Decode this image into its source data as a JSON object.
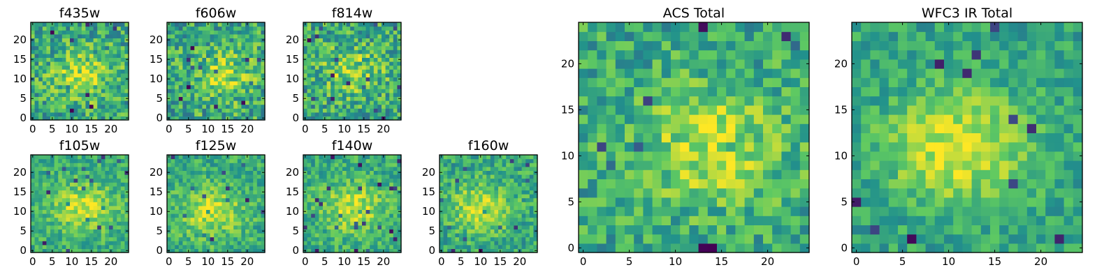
{
  "figure": {
    "colormap": "viridis",
    "colors": [
      "#440154",
      "#3b528b",
      "#21918c",
      "#5ec962",
      "#fde725"
    ]
  },
  "chart_data": [
    {
      "type": "heatmap",
      "title": "f435w",
      "size": 25,
      "xticks": [
        "0",
        "5",
        "10",
        "15",
        "20"
      ],
      "yticks": [
        "0",
        "5",
        "10",
        "15",
        "20"
      ],
      "xlim": [
        0,
        25
      ],
      "ylim": [
        0,
        25
      ],
      "peak": {
        "x": 13,
        "y": 11
      },
      "background": 0.6,
      "amplitude": 0.28,
      "noise": 0.24,
      "seed": 11
    },
    {
      "type": "heatmap",
      "title": "f606w",
      "size": 25,
      "xticks": [
        "0",
        "5",
        "10",
        "15",
        "20"
      ],
      "yticks": [
        "0",
        "5",
        "10",
        "15",
        "20"
      ],
      "xlim": [
        0,
        25
      ],
      "ylim": [
        0,
        25
      ],
      "peak": {
        "x": 14,
        "y": 11
      },
      "background": 0.6,
      "amplitude": 0.25,
      "noise": 0.25,
      "seed": 23
    },
    {
      "type": "heatmap",
      "title": "f814w",
      "size": 25,
      "xticks": [
        "0",
        "5",
        "10",
        "15",
        "20"
      ],
      "yticks": [
        "0",
        "5",
        "10",
        "15",
        "20"
      ],
      "xlim": [
        0,
        25
      ],
      "ylim": [
        0,
        25
      ],
      "peak": {
        "x": 12,
        "y": 12
      },
      "background": 0.6,
      "amplitude": 0.22,
      "noise": 0.25,
      "seed": 37
    },
    {
      "type": "heatmap",
      "title": "f105w",
      "size": 25,
      "xticks": [
        "0",
        "5",
        "10",
        "15",
        "20"
      ],
      "yticks": [
        "0",
        "5",
        "10",
        "15",
        "20"
      ],
      "xlim": [
        0,
        25
      ],
      "ylim": [
        0,
        25
      ],
      "peak": {
        "x": 13,
        "y": 11
      },
      "background": 0.62,
      "amplitude": 0.3,
      "noise": 0.16,
      "seed": 41
    },
    {
      "type": "heatmap",
      "title": "f125w",
      "size": 25,
      "xticks": [
        "0",
        "5",
        "10",
        "15",
        "20"
      ],
      "yticks": [
        "0",
        "5",
        "10",
        "15",
        "20"
      ],
      "xlim": [
        0,
        25
      ],
      "ylim": [
        0,
        25
      ],
      "peak": {
        "x": 11,
        "y": 10
      },
      "background": 0.62,
      "amplitude": 0.3,
      "noise": 0.17,
      "seed": 53
    },
    {
      "type": "heatmap",
      "title": "f140w",
      "size": 25,
      "xticks": [
        "0",
        "5",
        "10",
        "15",
        "20"
      ],
      "yticks": [
        "0",
        "5",
        "10",
        "15",
        "20"
      ],
      "xlim": [
        0,
        25
      ],
      "ylim": [
        0,
        25
      ],
      "peak": {
        "x": 12,
        "y": 11
      },
      "background": 0.62,
      "amplitude": 0.3,
      "noise": 0.17,
      "seed": 67
    },
    {
      "type": "heatmap",
      "title": "f160w",
      "size": 25,
      "xticks": [
        "0",
        "5",
        "10",
        "15",
        "20"
      ],
      "yticks": [
        "0",
        "5",
        "10",
        "15",
        "20"
      ],
      "xlim": [
        0,
        25
      ],
      "ylim": [
        0,
        25
      ],
      "peak": {
        "x": 10,
        "y": 11
      },
      "background": 0.6,
      "amplitude": 0.32,
      "noise": 0.18,
      "seed": 79
    },
    {
      "type": "heatmap",
      "title": "ACS Total",
      "size": 25,
      "xticks": [
        "0",
        "5",
        "10",
        "15",
        "20"
      ],
      "yticks": [
        "0",
        "5",
        "10",
        "15",
        "20"
      ],
      "xlim": [
        0,
        25
      ],
      "ylim": [
        0,
        25
      ],
      "peak": {
        "x": 14,
        "y": 11
      },
      "background": 0.6,
      "amplitude": 0.3,
      "noise": 0.2,
      "seed": 97
    },
    {
      "type": "heatmap",
      "title": "WFC3 IR Total",
      "size": 25,
      "xticks": [
        "0",
        "5",
        "10",
        "15",
        "20"
      ],
      "yticks": [
        "0",
        "5",
        "10",
        "15",
        "20"
      ],
      "xlim": [
        0,
        25
      ],
      "ylim": [
        0,
        25
      ],
      "peak": {
        "x": 11,
        "y": 11
      },
      "background": 0.58,
      "amplitude": 0.38,
      "noise": 0.15,
      "seed": 113
    }
  ]
}
